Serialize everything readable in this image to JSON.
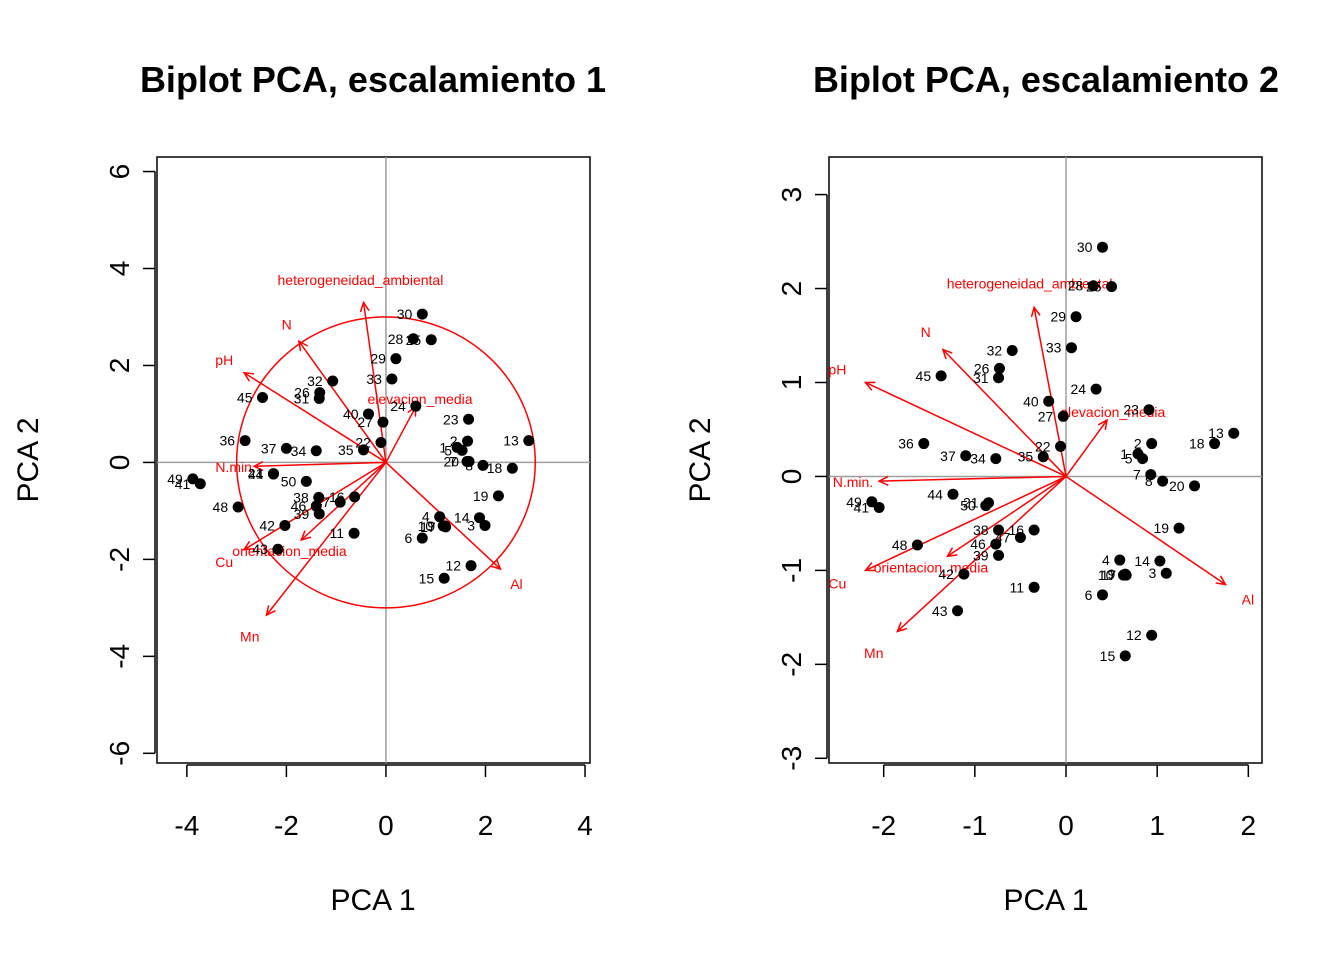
{
  "chart_data": [
    {
      "type": "scatter",
      "title": "Biplot PCA, escalamiento 1",
      "xlabel": "PCA  1",
      "ylabel": "PCA  2",
      "xlim": [
        -4.6,
        4.1
      ],
      "ylim": [
        -6.2,
        6.3
      ],
      "xticks": [
        -4,
        -2,
        0,
        2,
        4
      ],
      "yticks": [
        -6,
        -4,
        -2,
        0,
        2,
        4,
        6
      ],
      "equilibrium_circle_radius": 3.0,
      "sites": [
        {
          "label": "1",
          "x": 1.43,
          "y": 0.31
        },
        {
          "label": "2",
          "x": 1.64,
          "y": 0.44
        },
        {
          "label": "3",
          "x": 1.99,
          "y": -1.3
        },
        {
          "label": "4",
          "x": 1.08,
          "y": -1.12
        },
        {
          "label": "5",
          "x": 1.53,
          "y": 0.25
        },
        {
          "label": "6",
          "x": 0.73,
          "y": -1.56
        },
        {
          "label": "7",
          "x": 1.63,
          "y": 0.02
        },
        {
          "label": "8",
          "x": 1.95,
          "y": -0.06
        },
        {
          "label": "9",
          "x": 1.19,
          "y": -1.31
        },
        {
          "label": "10",
          "x": 1.15,
          "y": -1.31
        },
        {
          "label": "11",
          "x": -0.64,
          "y": -1.46
        },
        {
          "label": "12",
          "x": 1.71,
          "y": -2.13
        },
        {
          "label": "13",
          "x": 2.87,
          "y": 0.45
        },
        {
          "label": "14",
          "x": 1.88,
          "y": -1.14
        },
        {
          "label": "15",
          "x": 1.17,
          "y": -2.39
        },
        {
          "label": "16",
          "x": -0.63,
          "y": -0.71
        },
        {
          "label": "17",
          "x": 1.2,
          "y": -1.33
        },
        {
          "label": "18",
          "x": 2.54,
          "y": -0.12
        },
        {
          "label": "19",
          "x": 2.26,
          "y": -0.69
        },
        {
          "label": "20",
          "x": 1.67,
          "y": 0.02
        },
        {
          "label": "21",
          "x": -2.26,
          "y": -0.23
        },
        {
          "label": "22",
          "x": -0.1,
          "y": 0.41
        },
        {
          "label": "23",
          "x": 1.66,
          "y": 0.89
        },
        {
          "label": "24",
          "x": 0.6,
          "y": 1.16
        },
        {
          "label": "25",
          "x": 0.91,
          "y": 2.53
        },
        {
          "label": "26",
          "x": -1.33,
          "y": 1.44
        },
        {
          "label": "27",
          "x": -0.06,
          "y": 0.83
        },
        {
          "label": "28",
          "x": 0.55,
          "y": 2.55
        },
        {
          "label": "29",
          "x": 0.2,
          "y": 2.14
        },
        {
          "label": "30",
          "x": 0.73,
          "y": 3.06
        },
        {
          "label": "31",
          "x": -1.34,
          "y": 1.32
        },
        {
          "label": "32",
          "x": -1.07,
          "y": 1.68
        },
        {
          "label": "33",
          "x": 0.12,
          "y": 1.72
        },
        {
          "label": "34",
          "x": -1.4,
          "y": 0.24
        },
        {
          "label": "35",
          "x": -0.45,
          "y": 0.26
        },
        {
          "label": "36",
          "x": -2.83,
          "y": 0.45
        },
        {
          "label": "37",
          "x": -2.0,
          "y": 0.29
        },
        {
          "label": "38",
          "x": -1.35,
          "y": -0.72
        },
        {
          "label": "39",
          "x": -1.34,
          "y": -1.06
        },
        {
          "label": "40",
          "x": -0.35,
          "y": 1.0
        },
        {
          "label": "41",
          "x": -3.73,
          "y": -0.44
        },
        {
          "label": "42",
          "x": -2.03,
          "y": -1.3
        },
        {
          "label": "43",
          "x": -2.17,
          "y": -1.79
        },
        {
          "label": "44",
          "x": -2.26,
          "y": -0.24
        },
        {
          "label": "45",
          "x": -2.48,
          "y": 1.34
        },
        {
          "label": "46",
          "x": -1.4,
          "y": -0.9
        },
        {
          "label": "47",
          "x": -0.92,
          "y": -0.82
        },
        {
          "label": "48",
          "x": -2.97,
          "y": -0.92
        },
        {
          "label": "49",
          "x": -3.88,
          "y": -0.34
        },
        {
          "label": "50",
          "x": -1.6,
          "y": -0.39
        }
      ],
      "variables": [
        {
          "name": "heterogeneidad_ambiental",
          "x": -0.45,
          "y": 3.3
        },
        {
          "name": "N",
          "x": -1.75,
          "y": 2.5
        },
        {
          "name": "pH",
          "x": -2.85,
          "y": 1.85
        },
        {
          "name": "elevacion_media",
          "x": 0.6,
          "y": 1.15
        },
        {
          "name": "N.min.",
          "x": -2.65,
          "y": -0.08
        },
        {
          "name": "orientacion_media",
          "x": -1.7,
          "y": -1.6
        },
        {
          "name": "Cu",
          "x": -2.85,
          "y": -1.8
        },
        {
          "name": "Mn",
          "x": -2.4,
          "y": -3.15
        },
        {
          "name": "Al",
          "x": 2.3,
          "y": -2.2
        }
      ]
    },
    {
      "type": "scatter",
      "title": "Biplot PCA, escalamiento 2",
      "xlabel": "PCA  1",
      "ylabel": "PCA  2",
      "xlim": [
        -2.6,
        2.15
      ],
      "ylim": [
        -3.05,
        3.4
      ],
      "xticks": [
        -2,
        -1,
        0,
        1,
        2
      ],
      "yticks": [
        -3,
        -2,
        -1,
        0,
        1,
        2,
        3
      ],
      "sites": [
        {
          "label": "1",
          "x": 0.79,
          "y": 0.24
        },
        {
          "label": "2",
          "x": 0.94,
          "y": 0.35
        },
        {
          "label": "3",
          "x": 1.1,
          "y": -1.03
        },
        {
          "label": "4",
          "x": 0.59,
          "y": -0.89
        },
        {
          "label": "5",
          "x": 0.84,
          "y": 0.19
        },
        {
          "label": "6",
          "x": 0.4,
          "y": -1.26
        },
        {
          "label": "7",
          "x": 0.93,
          "y": 0.02
        },
        {
          "label": "8",
          "x": 1.06,
          "y": -0.05
        },
        {
          "label": "9",
          "x": 0.65,
          "y": -1.04
        },
        {
          "label": "10",
          "x": 0.63,
          "y": -1.05
        },
        {
          "label": "11",
          "x": -0.35,
          "y": -1.18
        },
        {
          "label": "12",
          "x": 0.94,
          "y": -1.69
        },
        {
          "label": "13",
          "x": 1.84,
          "y": 0.46
        },
        {
          "label": "14",
          "x": 1.03,
          "y": -0.9
        },
        {
          "label": "15",
          "x": 0.65,
          "y": -1.91
        },
        {
          "label": "16",
          "x": -0.35,
          "y": -0.57
        },
        {
          "label": "17",
          "x": 0.66,
          "y": -1.05
        },
        {
          "label": "18",
          "x": 1.63,
          "y": 0.35
        },
        {
          "label": "19",
          "x": 1.24,
          "y": -0.55
        },
        {
          "label": "20",
          "x": 1.41,
          "y": -0.1
        },
        {
          "label": "21",
          "x": -0.85,
          "y": -0.28
        },
        {
          "label": "22",
          "x": -0.06,
          "y": 0.32
        },
        {
          "label": "23",
          "x": 0.91,
          "y": 0.71
        },
        {
          "label": "24",
          "x": 0.33,
          "y": 0.93
        },
        {
          "label": "25",
          "x": 0.5,
          "y": 2.02
        },
        {
          "label": "26",
          "x": -0.73,
          "y": 1.15
        },
        {
          "label": "27",
          "x": -0.03,
          "y": 0.64
        },
        {
          "label": "28",
          "x": 0.3,
          "y": 2.03
        },
        {
          "label": "29",
          "x": 0.11,
          "y": 1.7
        },
        {
          "label": "30",
          "x": 0.4,
          "y": 2.44
        },
        {
          "label": "31",
          "x": -0.74,
          "y": 1.05
        },
        {
          "label": "32",
          "x": -0.59,
          "y": 1.34
        },
        {
          "label": "33",
          "x": 0.06,
          "y": 1.37
        },
        {
          "label": "34",
          "x": -0.77,
          "y": 0.19
        },
        {
          "label": "35",
          "x": -0.25,
          "y": 0.21
        },
        {
          "label": "36",
          "x": -1.56,
          "y": 0.35
        },
        {
          "label": "37",
          "x": -1.1,
          "y": 0.22
        },
        {
          "label": "38",
          "x": -0.74,
          "y": -0.57
        },
        {
          "label": "39",
          "x": -0.74,
          "y": -0.84
        },
        {
          "label": "40",
          "x": -0.19,
          "y": 0.8
        },
        {
          "label": "41",
          "x": -2.05,
          "y": -0.33
        },
        {
          "label": "42",
          "x": -1.12,
          "y": -1.04
        },
        {
          "label": "43",
          "x": -1.19,
          "y": -1.43
        },
        {
          "label": "44",
          "x": -1.24,
          "y": -0.19
        },
        {
          "label": "45",
          "x": -1.37,
          "y": 1.07
        },
        {
          "label": "46",
          "x": -0.77,
          "y": -0.72
        },
        {
          "label": "47",
          "x": -0.5,
          "y": -0.65
        },
        {
          "label": "48",
          "x": -1.63,
          "y": -0.73
        },
        {
          "label": "49",
          "x": -2.13,
          "y": -0.27
        },
        {
          "label": "50",
          "x": -0.88,
          "y": -0.31
        }
      ],
      "variables": [
        {
          "name": "heterogeneidad_ambiental",
          "x": -0.35,
          "y": 1.8
        },
        {
          "name": "N",
          "x": -1.35,
          "y": 1.35
        },
        {
          "name": "pH",
          "x": -2.2,
          "y": 1.0
        },
        {
          "name": "elevacion_media",
          "x": 0.45,
          "y": 0.6
        },
        {
          "name": "N.min.",
          "x": -2.05,
          "y": -0.05
        },
        {
          "name": "orientacion_media",
          "x": -1.3,
          "y": -0.85
        },
        {
          "name": "Cu",
          "x": -2.2,
          "y": -1.0
        },
        {
          "name": "Mn",
          "x": -1.85,
          "y": -1.65
        },
        {
          "name": "Al",
          "x": 1.75,
          "y": -1.15
        }
      ]
    }
  ]
}
